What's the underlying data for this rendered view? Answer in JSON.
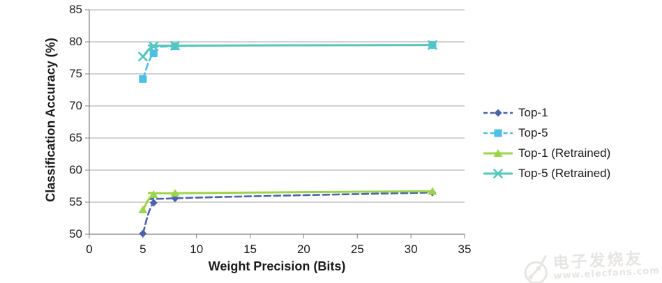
{
  "chart_data": {
    "type": "line",
    "title": "",
    "xlabel": "Weight Precision (Bits)",
    "ylabel": "Classification Accuracy (%)",
    "xlim": [
      0,
      35
    ],
    "ylim": [
      50,
      85
    ],
    "x_ticks": [
      0,
      5,
      10,
      15,
      20,
      25,
      30,
      35
    ],
    "y_ticks": [
      50,
      55,
      60,
      65,
      70,
      75,
      80,
      85
    ],
    "grid": "horizontal-only",
    "legend_position": "right",
    "x": [
      5,
      6,
      8,
      32
    ],
    "series": [
      {
        "name": "Top-1",
        "color": "#4b61ab",
        "line": "dashed",
        "marker": "diamond",
        "values": [
          50.1,
          54.9,
          55.6,
          56.5
        ]
      },
      {
        "name": "Top-5",
        "color": "#4fc0e4",
        "line": "dashed",
        "marker": "square",
        "values": [
          74.2,
          78.2,
          79.3,
          79.5
        ]
      },
      {
        "name": "Top-1 (Retrained)",
        "color": "#9bd44a",
        "line": "solid",
        "marker": "triangle",
        "values": [
          53.8,
          56.2,
          56.4,
          56.7
        ]
      },
      {
        "name": "Top-5 (Retrained)",
        "color": "#55c6bb",
        "line": "solid",
        "marker": "x",
        "values": [
          77.7,
          79.3,
          79.4,
          79.5
        ]
      }
    ],
    "axis_color": "#808080",
    "grid_color": "#a6a6a6"
  },
  "watermark": {
    "brand": "电子发烧友",
    "url": "www.elecfans.com"
  }
}
